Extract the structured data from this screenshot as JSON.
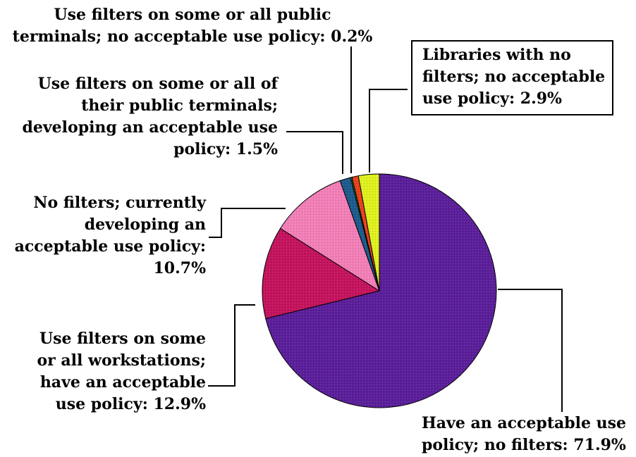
{
  "chart_data": {
    "type": "pie",
    "title": "",
    "slices": [
      {
        "label": "Have an acceptable use\npolicy; no filters: 71.9%",
        "value": 71.9,
        "color": "#5b1f9a"
      },
      {
        "label": "Use filters on some\nor all workstations;\nhave an acceptable\nuse policy: 12.9%",
        "value": 12.9,
        "color": "#c4145e"
      },
      {
        "label": "No filters; currently\ndeveloping an\nacceptable use policy:\n10.7%",
        "value": 10.7,
        "color": "#f27fb7"
      },
      {
        "label": "Use filters on some or all of\ntheir public terminals;\ndeveloping an acceptable use\npolicy: 1.5%",
        "value": 1.5,
        "color": "#1d5b8c"
      },
      {
        "label": "Use filters on some or all public\nterminals; no acceptable use policy: 0.2%",
        "value": 0.2,
        "color": "#1d7a2a"
      },
      {
        "label": "",
        "value": 0.9,
        "color": "#e8411c"
      },
      {
        "label": "Libraries with no\nfilters; no acceptable\nuse policy: 2.9%",
        "value": 2.9,
        "color": "#dff01f"
      }
    ],
    "legend": "callout-labels"
  }
}
